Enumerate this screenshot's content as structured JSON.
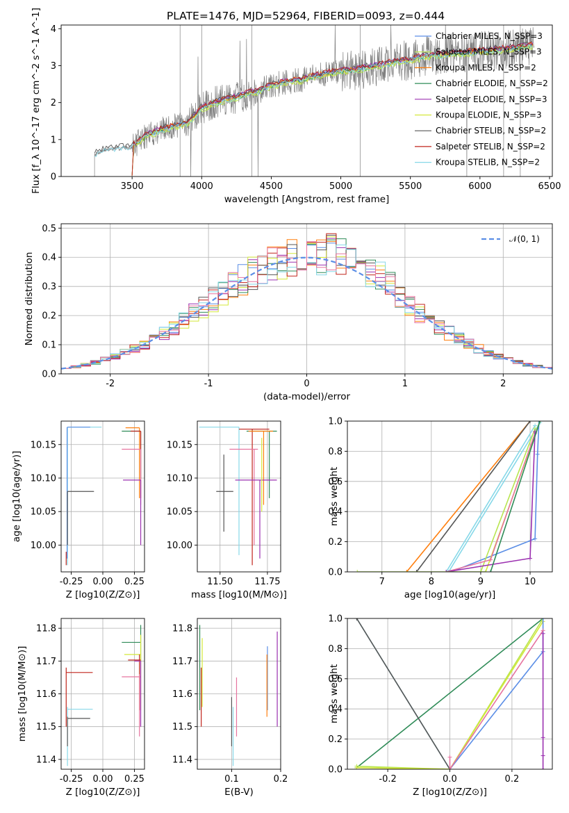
{
  "title": "PLATE=1476, MJD=52964, FIBERID=0093, z=0.444",
  "colors": {
    "Chabrier MILES": "#5b8ee6",
    "Salpeter MILES": "#b8e550",
    "Kroupa MILES": "#ff7f0e",
    "Chabrier ELODIE": "#2e8b57",
    "Salpeter ELODIE": "#9b30b0",
    "Kroupa ELODIE": "#d4e83a",
    "Chabrier STELIB": "#555555",
    "Salpeter STELIB": "#c0241c",
    "Kroupa STELIB": "#86d8e8",
    "Pink": "#e6739f",
    "Data": "#808080"
  },
  "chart_data": [
    {
      "id": "spectrum",
      "type": "line",
      "title": "PLATE=1476, MJD=52964, FIBERID=0093, z=0.444",
      "xlabel": "wavelength [Angstrom, rest frame]",
      "ylabel": "Flux [f_λ 10^-17 erg cm^-2 s^-1 A^-1]",
      "xlim": [
        2990,
        6520
      ],
      "ylim": [
        0,
        4.1
      ],
      "xticks": [
        3500,
        4000,
        4500,
        5000,
        5500,
        6000,
        6500
      ],
      "yticks": [
        0,
        1,
        2,
        3,
        4
      ],
      "legend_position": "upper right",
      "legend": [
        "Chabrier MILES, N_SSP=3",
        "Salpeter MILES, N_SSP=3",
        "Kroupa MILES, N_SSP=2",
        "Chabrier ELODIE, N_SSP=2",
        "Salpeter ELODIE, N_SSP=3",
        "Kroupa ELODIE, N_SSP=3",
        "Chabrier STELIB, N_SSP=2",
        "Salpeter STELIB, N_SSP=2",
        "Kroupa STELIB, N_SSP=2"
      ],
      "model_continuum": {
        "x": [
          3230,
          3300,
          3400,
          3500,
          3600,
          3700,
          3800,
          3900,
          4000,
          4100,
          4200,
          4300,
          4400,
          4500,
          4600,
          4700,
          4800,
          4900,
          5000,
          5100,
          5200,
          5300,
          5400,
          5500,
          5600,
          5700,
          5800,
          5900,
          6000,
          6100,
          6200,
          6300,
          6380
        ],
        "y": [
          0.6,
          0.72,
          0.76,
          0.8,
          1.1,
          1.25,
          1.35,
          1.45,
          1.85,
          2.0,
          2.1,
          2.2,
          2.3,
          2.45,
          2.55,
          2.6,
          2.7,
          2.78,
          2.85,
          2.88,
          2.95,
          3.02,
          3.1,
          3.15,
          3.25,
          3.28,
          3.32,
          3.35,
          3.38,
          3.42,
          3.45,
          3.5,
          3.55
        ]
      }
    },
    {
      "id": "residuals",
      "type": "bar",
      "xlabel": "(data-model)/error",
      "ylabel": "Normed distribution",
      "xlim": [
        -2.5,
        2.5
      ],
      "ylim": [
        0,
        0.515
      ],
      "xticks": [
        -2,
        -1,
        0,
        1,
        2
      ],
      "yticks": [
        0.0,
        0.1,
        0.2,
        0.3,
        0.4,
        0.5
      ],
      "legend": [
        "𝒩(0, 1)"
      ],
      "bin_width": 0.1
    },
    {
      "id": "age_vs_Z",
      "type": "scatter",
      "xlabel": "Z [log10(Z/Z⊙)]",
      "ylabel": "age  [log10(age/yr)]",
      "xlim": [
        -0.33,
        0.33
      ],
      "ylim": [
        9.96,
        10.185
      ],
      "xticks": [
        -0.25,
        0.0,
        0.25
      ],
      "yticks": [
        10.0,
        10.05,
        10.1,
        10.15
      ]
    },
    {
      "id": "age_vs_mass",
      "type": "scatter",
      "xlabel": "mass [log10(M/M⊙)]",
      "xlim": [
        11.38,
        11.82
      ],
      "ylim": [
        9.96,
        10.185
      ],
      "xticks": [
        11.5,
        11.75
      ],
      "yticks": [
        10.0,
        10.05,
        10.1,
        10.15
      ]
    },
    {
      "id": "massweight_vs_age",
      "type": "line",
      "xlabel": "age  [log10(age/yr)]",
      "ylabel": "mass weight",
      "xlim": [
        6.3,
        10.45
      ],
      "ylim": [
        0,
        1.0
      ],
      "xticks": [
        7,
        8,
        9,
        10
      ],
      "yticks": [
        0.0,
        0.2,
        0.4,
        0.6,
        0.8,
        1.0
      ]
    },
    {
      "id": "mass_vs_Z",
      "type": "scatter",
      "xlabel": "Z [log10(Z/Z⊙)]",
      "ylabel": "mass [log10(M/M⊙)]",
      "xlim": [
        -0.33,
        0.33
      ],
      "ylim": [
        11.37,
        11.83
      ],
      "xticks": [
        -0.25,
        0.0,
        0.25
      ],
      "yticks": [
        11.4,
        11.5,
        11.6,
        11.7,
        11.8
      ]
    },
    {
      "id": "mass_vs_ebv",
      "type": "scatter",
      "xlabel": "E(B-V)",
      "xlim": [
        0.03,
        0.2
      ],
      "ylim": [
        11.37,
        11.83
      ],
      "xticks": [
        0.1,
        0.2
      ],
      "yticks": [
        11.4,
        11.5,
        11.6,
        11.7,
        11.8
      ]
    },
    {
      "id": "massweight_vs_Z",
      "type": "line",
      "xlabel": "Z [log10(Z/Z⊙)]",
      "ylabel": "mass weight",
      "xlim": [
        -0.33,
        0.33
      ],
      "ylim": [
        0,
        1.0
      ],
      "xticks": [
        -0.2,
        0.0,
        0.2
      ],
      "yticks": [
        0.0,
        0.2,
        0.4,
        0.6,
        0.8,
        1.0
      ]
    }
  ]
}
